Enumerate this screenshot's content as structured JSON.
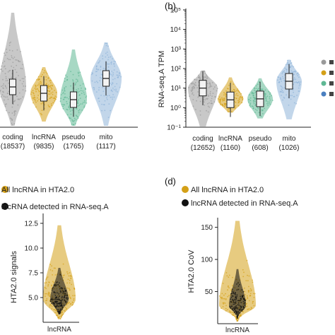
{
  "chart_data": [
    {
      "panel": "",
      "type": "violin",
      "categories": [
        "coding",
        "lncRNA",
        "pseudo",
        "mito"
      ],
      "counts": [
        "(18537)",
        "(9835)",
        "(1765)",
        "(1117)"
      ],
      "colors": [
        "#9a9a9a",
        "#d4a017",
        "#5fb894",
        "#8fb4d9"
      ],
      "ylabel": "",
      "scale": "log",
      "medians_log10": [
        0.4,
        0.1,
        -0.2,
        0.8
      ]
    },
    {
      "panel": "(b)",
      "type": "violin",
      "categories": [
        "coding",
        "lncRNA",
        "pseudo",
        "mito"
      ],
      "counts": [
        "(12652)",
        "(1160)",
        "(608)",
        "(1026)"
      ],
      "colors": [
        "#9a9a9a",
        "#d4a017",
        "#5fb894",
        "#8fb4d9"
      ],
      "ylabel": "RNA-seq.A TPM",
      "scale": "log",
      "yticks": [
        "10⁻¹",
        "10⁰",
        "10¹",
        "10²",
        "10³",
        "10⁴",
        "10⁵"
      ],
      "ylim_log10": [
        -1,
        5
      ],
      "medians_log10": [
        1.0,
        0.4,
        0.45,
        1.35
      ]
    },
    {
      "panel": "",
      "type": "violin",
      "categories": [
        "lncRNA"
      ],
      "ylabel": "HTA2.0 signals",
      "yticks": [
        "5.0",
        "7.5",
        "10.0",
        "12.5"
      ],
      "ylim": [
        2.5,
        13.5
      ],
      "median": 4.8,
      "legend": [
        "All lncRNA in HTA2.0",
        "lncRNA detected in RNA-seq.A"
      ],
      "colors": [
        "#d4a017",
        "#111111"
      ]
    },
    {
      "panel": "(d)",
      "type": "violin",
      "categories": [
        "lncRNA"
      ],
      "ylabel": "HTA2.0 CoV",
      "yticks": [
        "50",
        "100",
        "150"
      ],
      "ylim": [
        0,
        165
      ],
      "median": 28,
      "legend": [
        "All lncRNA in HTA2.0",
        "lncRNA detected in RNA-seq.A"
      ],
      "colors": [
        "#d4a017",
        "#111111"
      ]
    }
  ],
  "legend_b_markers": [
    "#9a9a9a",
    "#d4a017",
    "#5fb894",
    "#4a7fc0"
  ]
}
